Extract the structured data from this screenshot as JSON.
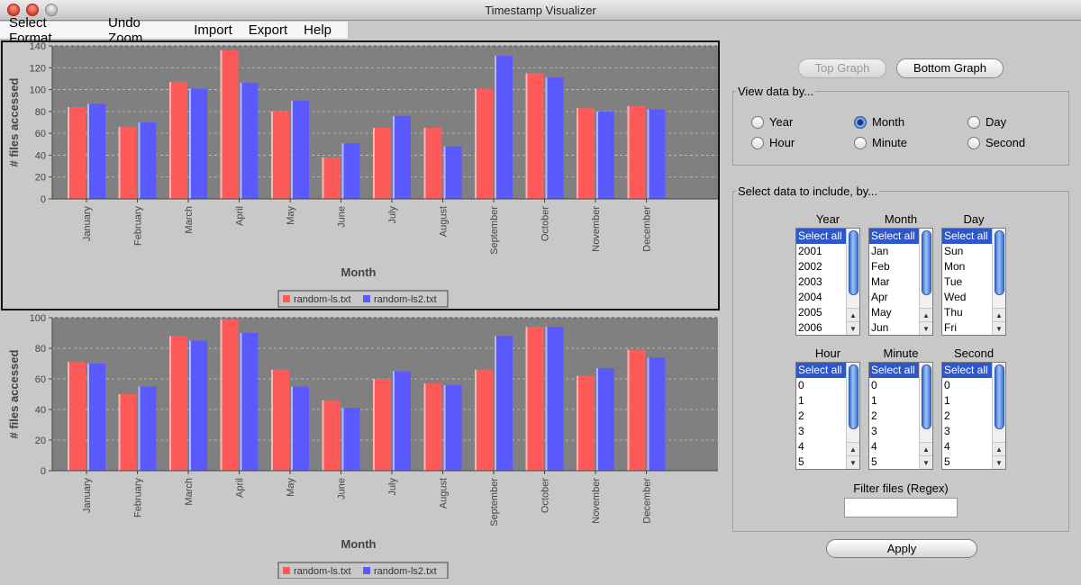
{
  "window": {
    "title": "Timestamp Visualizer"
  },
  "menu": [
    "Select Format",
    "Undo Zoom",
    "Import",
    "Export",
    "Help"
  ],
  "colors": {
    "series1": "#ff5a5a",
    "series2": "#5a5aff",
    "plot_bg": "#808080",
    "list_selected": "#2e57c9"
  },
  "graph_buttons": {
    "top": "Top Graph",
    "bottom": "Bottom Graph"
  },
  "view_by": {
    "legend": "View data by...",
    "options": [
      "Year",
      "Month",
      "Day",
      "Hour",
      "Minute",
      "Second"
    ],
    "selected": "Month"
  },
  "include": {
    "legend": "Select data to include, by...",
    "lists": [
      {
        "label": "Year",
        "items": [
          "Select all",
          "2001",
          "2002",
          "2003",
          "2004",
          "2005",
          "2006"
        ]
      },
      {
        "label": "Month",
        "items": [
          "Select all",
          "Jan",
          "Feb",
          "Mar",
          "Apr",
          "May",
          "Jun"
        ]
      },
      {
        "label": "Day",
        "items": [
          "Select all",
          "Sun",
          "Mon",
          "Tue",
          "Wed",
          "Thu",
          "Fri"
        ]
      },
      {
        "label": "Hour",
        "items": [
          "Select all",
          "0",
          "1",
          "2",
          "3",
          "4",
          "5"
        ]
      },
      {
        "label": "Minute",
        "items": [
          "Select all",
          "0",
          "1",
          "2",
          "3",
          "4",
          "5"
        ]
      },
      {
        "label": "Second",
        "items": [
          "Select all",
          "0",
          "1",
          "2",
          "3",
          "4",
          "5"
        ]
      }
    ],
    "filter_label": "Filter files (Regex)",
    "filter_value": ""
  },
  "apply_label": "Apply",
  "chart_data": [
    {
      "type": "bar",
      "xlabel": "Month",
      "ylabel": "# files accessed",
      "ylim": [
        0,
        140
      ],
      "yticks": [
        0,
        20,
        40,
        60,
        80,
        100,
        120,
        140
      ],
      "grid": true,
      "legend_position": "bottom",
      "categories": [
        "January",
        "February",
        "March",
        "April",
        "May",
        "June",
        "July",
        "August",
        "September",
        "October",
        "November",
        "December"
      ],
      "series": [
        {
          "name": "random-ls.txt",
          "values": [
            84,
            66,
            107,
            136,
            80,
            38,
            65,
            65,
            101,
            115,
            83,
            85
          ]
        },
        {
          "name": "random-ls2.txt",
          "values": [
            87,
            70,
            101,
            106,
            90,
            51,
            76,
            48,
            131,
            111,
            80,
            82
          ]
        }
      ]
    },
    {
      "type": "bar",
      "xlabel": "Month",
      "ylabel": "# files accessed",
      "ylim": [
        0,
        100
      ],
      "yticks": [
        0,
        20,
        40,
        60,
        80,
        100
      ],
      "grid": true,
      "legend_position": "bottom",
      "categories": [
        "January",
        "February",
        "March",
        "April",
        "May",
        "June",
        "July",
        "August",
        "September",
        "October",
        "November",
        "December"
      ],
      "series": [
        {
          "name": "random-ls.txt",
          "values": [
            71,
            50,
            88,
            99,
            66,
            46,
            60,
            57,
            66,
            94,
            62,
            79
          ]
        },
        {
          "name": "random-ls2.txt",
          "values": [
            70,
            55,
            85,
            90,
            55,
            41,
            65,
            56,
            88,
            94,
            67,
            74
          ]
        }
      ]
    }
  ]
}
